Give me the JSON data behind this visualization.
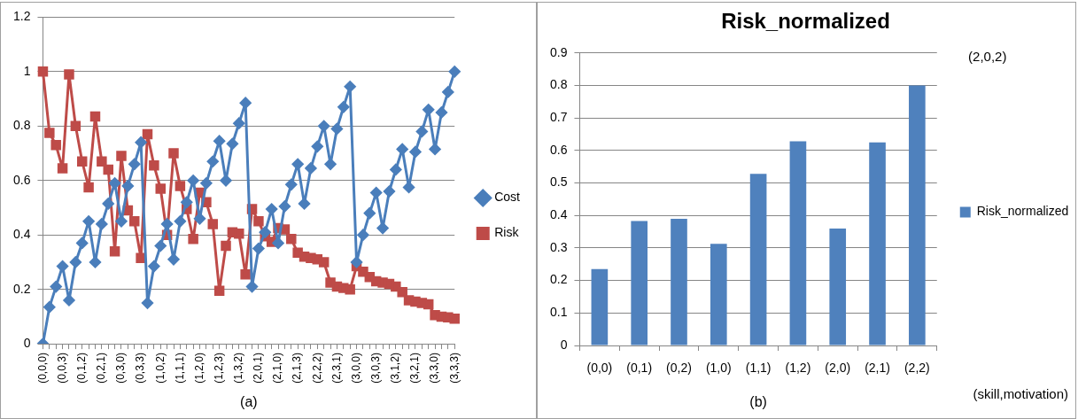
{
  "chart_data": [
    {
      "type": "line",
      "xlabel": "(a)",
      "categories": [
        "(0,0,0)",
        null,
        null,
        "(0,0,3)",
        null,
        null,
        "(0,1,2)",
        null,
        null,
        "(0,2,1)",
        null,
        null,
        "(0,3,0)",
        null,
        null,
        "(0,3,3)",
        null,
        null,
        "(1,0,2)",
        null,
        null,
        "(1,1,1)",
        null,
        null,
        "(1,2,0)",
        null,
        null,
        "(1,2,3)",
        null,
        null,
        "(1,3,2)",
        null,
        null,
        "(2,0,1)",
        null,
        null,
        "(2,1,0)",
        null,
        null,
        "(2,1,3)",
        null,
        null,
        "(2,2,2)",
        null,
        null,
        "(2,3,1)",
        null,
        null,
        "(3,0,0)",
        null,
        null,
        "(3,0,3)",
        null,
        null,
        "(3,1,2)",
        null,
        null,
        "(3,2,1)",
        null,
        null,
        "(3,3,0)",
        null,
        null,
        "(3,3,3)"
      ],
      "series": [
        {
          "name": "Cost",
          "color": "#4a7ebb",
          "marker": "diamond",
          "values": [
            0,
            0.135,
            0.21,
            0.285,
            0.16,
            0.3,
            0.37,
            0.45,
            0.3,
            0.44,
            0.515,
            0.59,
            0.45,
            0.58,
            0.66,
            0.74,
            0.15,
            0.285,
            0.36,
            0.44,
            0.31,
            0.45,
            0.52,
            0.6,
            0.46,
            0.59,
            0.67,
            0.745,
            0.6,
            0.735,
            0.81,
            0.885,
            0.21,
            0.35,
            0.41,
            0.495,
            0.37,
            0.505,
            0.585,
            0.66,
            0.515,
            0.645,
            0.725,
            0.8,
            0.66,
            0.79,
            0.87,
            0.945,
            0.3,
            0.4,
            0.48,
            0.555,
            0.425,
            0.56,
            0.64,
            0.715,
            0.575,
            0.705,
            0.78,
            0.86,
            0.715,
            0.85,
            0.925,
            1.0
          ]
        },
        {
          "name": "Risk",
          "color": "#be4b48",
          "marker": "square",
          "values": [
            1.0,
            0.775,
            0.73,
            0.645,
            0.99,
            0.8,
            0.67,
            0.575,
            0.835,
            0.67,
            0.64,
            0.34,
            0.69,
            0.49,
            0.45,
            0.315,
            0.77,
            0.655,
            0.57,
            0.4,
            0.7,
            0.58,
            0.495,
            0.385,
            0.555,
            0.52,
            0.44,
            0.195,
            0.36,
            0.41,
            0.405,
            0.255,
            0.495,
            0.45,
            0.395,
            0.375,
            0.425,
            0.42,
            0.385,
            0.335,
            0.32,
            0.315,
            0.31,
            0.3,
            0.225,
            0.21,
            0.205,
            0.2,
            0.285,
            0.265,
            0.245,
            0.23,
            0.225,
            0.22,
            0.21,
            0.19,
            0.16,
            0.155,
            0.15,
            0.145,
            0.105,
            0.1,
            0.097,
            0.092
          ]
        }
      ],
      "ylim": [
        0,
        1.2
      ],
      "yticks": [
        0,
        0.2,
        0.4,
        0.6,
        0.8,
        1,
        1.2
      ],
      "grid": "y",
      "legend": "right",
      "line_style": "solid"
    },
    {
      "type": "bar",
      "title": "Risk_normalized",
      "xlabel": "(b)",
      "categories": [
        "(0,0)",
        "(0,1)",
        "(0,2)",
        "(1,0)",
        "(1,1)",
        "(1,2)",
        "(2,0)",
        "(2,1)",
        "(2,2)"
      ],
      "series": [
        {
          "name": "Risk_normalized",
          "color": "#4f81bd",
          "values": [
            0.235,
            0.383,
            0.39,
            0.313,
            0.528,
            0.628,
            0.36,
            0.625,
            0.8
          ]
        }
      ],
      "ylim": [
        0,
        0.9
      ],
      "yticks": [
        0,
        0.1,
        0.2,
        0.3,
        0.4,
        0.5,
        0.6,
        0.7,
        0.8,
        0.9
      ],
      "grid": "y",
      "legend": "right",
      "annotations": [
        "(2,0,2)",
        "(skill,motivation)"
      ]
    }
  ]
}
